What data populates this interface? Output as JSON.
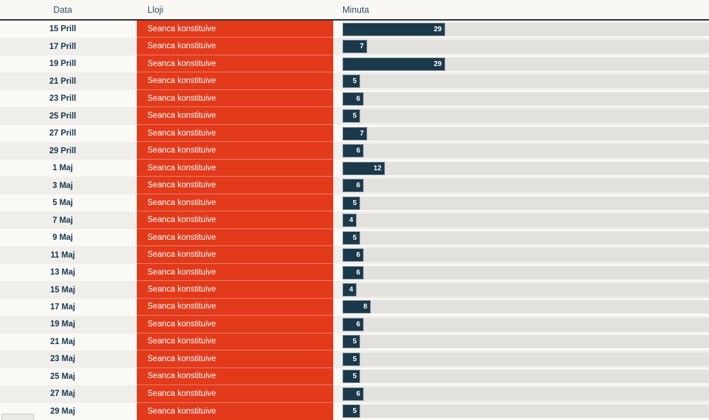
{
  "header": {
    "columns": [
      {
        "label": "Data"
      },
      {
        "label": "Lloji"
      },
      {
        "label": "Minuta"
      }
    ]
  },
  "rows": [
    {
      "date": "15 Prill",
      "type": "Seanca konstituive",
      "minutes": 29
    },
    {
      "date": "17 Prill",
      "type": "Seanca konstituive",
      "minutes": 7
    },
    {
      "date": "19 Prill",
      "type": "Seanca konstituive",
      "minutes": 29
    },
    {
      "date": "21 Prill",
      "type": "Seanca konstituive",
      "minutes": 5
    },
    {
      "date": "23 Prill",
      "type": "Seanca konstituive",
      "minutes": 6
    },
    {
      "date": "25 Prill",
      "type": "Seanca konstituive",
      "minutes": 5
    },
    {
      "date": "27 Prill",
      "type": "Seanca konstituive",
      "minutes": 7
    },
    {
      "date": "29 Prill",
      "type": "Seanca konstituive",
      "minutes": 6
    },
    {
      "date": "1 Maj",
      "type": "Seanca konstituive",
      "minutes": 12
    },
    {
      "date": "3 Maj",
      "type": "Seanca konstituive",
      "minutes": 6
    },
    {
      "date": "5 Maj",
      "type": "Seanca konstituive",
      "minutes": 5
    },
    {
      "date": "7 Maj",
      "type": "Seanca konstituive",
      "minutes": 4
    },
    {
      "date": "9 Maj",
      "type": "Seanca konstituive",
      "minutes": 5
    },
    {
      "date": "11 Maj",
      "type": "Seanca konstituive",
      "minutes": 6
    },
    {
      "date": "13 Maj",
      "type": "Seanca konstituive",
      "minutes": 6
    },
    {
      "date": "15 Maj",
      "type": "Seanca konstituive",
      "minutes": 4
    },
    {
      "date": "17 Maj",
      "type": "Seanca konstituive",
      "minutes": 8
    },
    {
      "date": "19 Maj",
      "type": "Seanca konstituive",
      "minutes": 6
    },
    {
      "date": "21 Maj",
      "type": "Seanca konstituive",
      "minutes": 5
    },
    {
      "date": "23 Maj",
      "type": "Seanca konstituive",
      "minutes": 5
    },
    {
      "date": "25 Maj",
      "type": "Seanca konstituive",
      "minutes": 5
    },
    {
      "date": "27 Maj",
      "type": "Seanca konstituive",
      "minutes": 6
    },
    {
      "date": "29 Maj",
      "type": "Seanca konstituive",
      "minutes": 5
    }
  ],
  "chart_data": {
    "type": "bar",
    "orientation": "horizontal",
    "title": "",
    "category_column": "Data",
    "type_column": "Lloji",
    "value_column": "Minuta",
    "categories": [
      "15 Prill",
      "17 Prill",
      "19 Prill",
      "21 Prill",
      "23 Prill",
      "25 Prill",
      "27 Prill",
      "29 Prill",
      "1 Maj",
      "3 Maj",
      "5 Maj",
      "7 Maj",
      "9 Maj",
      "11 Maj",
      "13 Maj",
      "15 Maj",
      "17 Maj",
      "19 Maj",
      "21 Maj",
      "23 Maj",
      "25 Maj",
      "27 Maj",
      "29 Maj"
    ],
    "series": [
      {
        "name": "Minuta",
        "values": [
          29,
          7,
          29,
          5,
          6,
          5,
          7,
          6,
          12,
          6,
          5,
          4,
          5,
          6,
          6,
          4,
          8,
          6,
          5,
          5,
          5,
          6,
          5
        ]
      }
    ],
    "row_type_label": "Seanca konstituive",
    "bar_value_labels": true,
    "xlim": [
      0,
      103
    ],
    "grid": false,
    "legend": "none"
  },
  "colors": {
    "accent_red": "#e23a1b",
    "bar_navy": "#1b394b",
    "track": "#e3e1de",
    "header_text": "#2f5166",
    "date_text": "#14364f",
    "row_odd": "#faf9f6",
    "row_even": "#f0eeeb",
    "header_bg": "#faf8f4",
    "separator": "#2e2e2e"
  }
}
